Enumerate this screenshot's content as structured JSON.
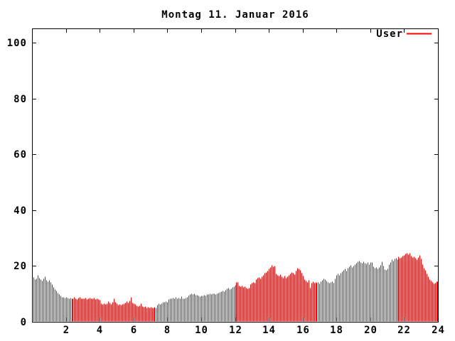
{
  "window": {
    "kind": "gnuplot-chart-image"
  },
  "chart_data": {
    "type": "bar",
    "title": "Montag 11. Januar 2016",
    "legend_label": "User",
    "legend_position": "top-right-inside",
    "series_color": "#ff0000",
    "frame_color": "#000000",
    "background_color": "#ffffff",
    "xlabel": "",
    "ylabel": "",
    "x_unit": "hour-of-day",
    "xlim": [
      0,
      24
    ],
    "ylim": [
      0,
      100
    ],
    "grid": false,
    "xticks": [
      2,
      4,
      6,
      8,
      10,
      12,
      14,
      16,
      18,
      20,
      22,
      24
    ],
    "yticks": [
      0,
      20,
      40,
      60,
      80,
      100
    ],
    "x_interval_minutes": 5,
    "x_first_sample_minutes": 5,
    "values": [
      16.0,
      15.2,
      15.5,
      16.9,
      15.8,
      15.2,
      14.8,
      15.5,
      16.3,
      15.0,
      14.6,
      14.9,
      14.3,
      13.6,
      12.5,
      11.8,
      11.2,
      10.4,
      9.8,
      9.3,
      9.0,
      8.8,
      8.7,
      8.9,
      8.6,
      8.4,
      8.7,
      8.3,
      8.5,
      8.8,
      8.4,
      8.2,
      8.6,
      8.9,
      8.3,
      8.5,
      8.4,
      8.6,
      8.2,
      8.5,
      8.7,
      8.3,
      8.4,
      8.6,
      8.1,
      8.4,
      8.2,
      7.8,
      6.6,
      6.4,
      6.7,
      6.3,
      6.5,
      7.4,
      6.8,
      6.4,
      7.0,
      8.4,
      7.2,
      6.6,
      6.2,
      6.4,
      6.1,
      6.3,
      6.6,
      6.9,
      7.3,
      6.8,
      7.6,
      8.8,
      6.9,
      6.6,
      6.4,
      5.9,
      5.6,
      5.8,
      6.6,
      5.5,
      5.3,
      5.6,
      5.2,
      5.4,
      5.1,
      5.3,
      5.2,
      5.0,
      5.4,
      5.1,
      6.2,
      6.5,
      6.3,
      6.7,
      7.0,
      7.2,
      7.4,
      7.1,
      8.2,
      8.5,
      8.3,
      8.7,
      8.4,
      8.9,
      8.3,
      8.6,
      8.4,
      9.2,
      8.5,
      8.3,
      8.6,
      8.9,
      9.5,
      9.8,
      10.2,
      9.9,
      10.1,
      9.7,
      9.6,
      9.4,
      9.2,
      9.5,
      9.4,
      9.6,
      9.3,
      9.8,
      10.0,
      10.2,
      9.9,
      10.1,
      10.3,
      10.0,
      10.2,
      10.4,
      10.8,
      11.0,
      11.2,
      10.9,
      11.5,
      11.9,
      12.3,
      11.7,
      12.0,
      12.4,
      12.8,
      13.2,
      14.3,
      14.3,
      13.0,
      12.6,
      12.9,
      12.4,
      12.7,
      12.2,
      11.9,
      12.3,
      13.6,
      14.1,
      14.3,
      14.0,
      15.3,
      15.8,
      16.0,
      15.6,
      16.4,
      16.9,
      17.5,
      17.9,
      18.3,
      19.0,
      19.6,
      20.4,
      19.8,
      20.1,
      17.3,
      16.9,
      16.5,
      17.0,
      16.2,
      15.8,
      16.5,
      15.9,
      16.3,
      16.8,
      17.3,
      17.8,
      17.5,
      17.1,
      18.4,
      19.4,
      19.1,
      18.6,
      17.5,
      16.6,
      15.3,
      14.8,
      14.3,
      15.0,
      12.2,
      14.1,
      14.4,
      13.9,
      14.2,
      14.0,
      14.3,
      13.8,
      14.6,
      15.1,
      15.6,
      15.2,
      14.8,
      14.3,
      13.9,
      14.2,
      14.5,
      14.1,
      15.5,
      16.8,
      17.3,
      16.9,
      17.5,
      18.1,
      18.6,
      19.0,
      18.4,
      19.4,
      19.9,
      20.4,
      19.6,
      20.1,
      20.7,
      21.2,
      21.6,
      21.9,
      21.4,
      21.0,
      21.6,
      21.2,
      20.8,
      21.4,
      20.5,
      21.4,
      21.4,
      19.9,
      19.4,
      19.7,
      19.1,
      19.5,
      20.4,
      21.6,
      20.1,
      18.9,
      18.6,
      19.1,
      20.5,
      21.3,
      22.4,
      21.8,
      22.6,
      23.0,
      22.4,
      23.3,
      22.8,
      23.1,
      23.6,
      24.0,
      24.5,
      24.8,
      24.2,
      24.6,
      23.6,
      23.2,
      23.4,
      22.9,
      22.4,
      23.1,
      24.0,
      22.6,
      20.5,
      19.4,
      18.6,
      17.3,
      16.2,
      15.3,
      14.8,
      14.3,
      13.8,
      14.1,
      14.6,
      14.4
    ]
  }
}
